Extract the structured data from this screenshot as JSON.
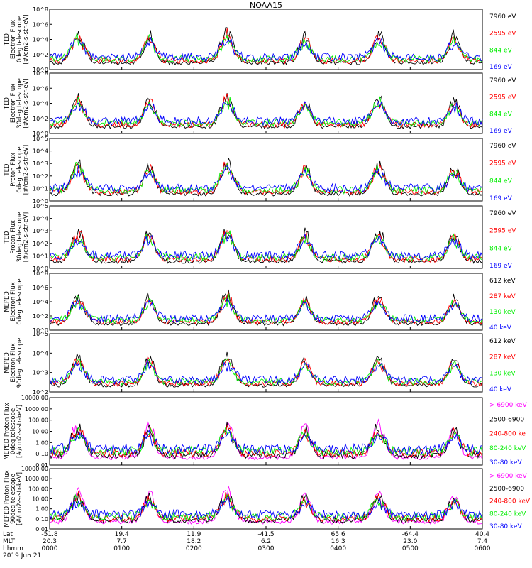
{
  "title": "NOAA15",
  "colors": {
    "blue": "#0000ff",
    "red": "#ff0000",
    "green": "#00ee00",
    "black": "#000000",
    "magenta": "#ff00ff"
  },
  "chart_data": [
    {
      "type": "line",
      "ylabel_lines": [
        "TED",
        "Electron Flux",
        "0deg telescope",
        "[#/cm2-s-str-eV]"
      ],
      "yscale": "log",
      "yticks": [
        "10^0",
        "10^2",
        "10^4",
        "10^6",
        "10^8"
      ],
      "series": [
        {
          "name": "7960 eV",
          "color": "black"
        },
        {
          "name": "2595 eV",
          "color": "red"
        },
        {
          "name": "844 eV",
          "color": "green"
        },
        {
          "name": "169 eV",
          "color": "blue"
        }
      ]
    },
    {
      "type": "line",
      "ylabel_lines": [
        "TED",
        "Electron Flux",
        "30deg telescope",
        "[#/cm2-s-str-eV]"
      ],
      "yscale": "log",
      "yticks": [
        "10^0",
        "10^2",
        "10^4",
        "10^6",
        "10^8"
      ],
      "series": [
        {
          "name": "7960 eV",
          "color": "black"
        },
        {
          "name": "2595 eV",
          "color": "red"
        },
        {
          "name": "844 eV",
          "color": "green"
        },
        {
          "name": "169 eV",
          "color": "blue"
        }
      ]
    },
    {
      "type": "line",
      "ylabel_lines": [
        "TED",
        "Proton Flux",
        "0deg telescope",
        "[#/cm2-s-str-eV]"
      ],
      "yscale": "log",
      "yticks": [
        "10^0",
        "10^1",
        "10^2",
        "10^3",
        "10^4",
        "10^5"
      ],
      "series": [
        {
          "name": "7960 eV",
          "color": "black"
        },
        {
          "name": "2595 eV",
          "color": "red"
        },
        {
          "name": "844 eV",
          "color": "green"
        },
        {
          "name": "169 eV",
          "color": "blue"
        }
      ]
    },
    {
      "type": "line",
      "ylabel_lines": [
        "TED",
        "Proton Flux",
        "30deg telescope",
        "[#/cm2-s-str-eV]"
      ],
      "yscale": "log",
      "yticks": [
        "10^0",
        "10^1",
        "10^2",
        "10^3",
        "10^4",
        "10^5"
      ],
      "series": [
        {
          "name": "7960 eV",
          "color": "black"
        },
        {
          "name": "2595 eV",
          "color": "red"
        },
        {
          "name": "844 eV",
          "color": "green"
        },
        {
          "name": "169 eV",
          "color": "blue"
        }
      ]
    },
    {
      "type": "line",
      "ylabel_lines": [
        "MEPED",
        "Electron Flux",
        "0deg telescope"
      ],
      "yscale": "log",
      "yticks": [
        "10^0",
        "10^2",
        "10^4",
        "10^6",
        "10^8"
      ],
      "series": [
        {
          "name": "612 keV",
          "color": "black"
        },
        {
          "name": "287 keV",
          "color": "red"
        },
        {
          "name": "130 keV",
          "color": "green"
        },
        {
          "name": "40 keV",
          "color": "blue"
        }
      ]
    },
    {
      "type": "line",
      "ylabel_lines": [
        "MEPED",
        "Electron Flux",
        "90deg telescope"
      ],
      "yscale": "log",
      "yticks": [
        "10^2",
        "10^3",
        "10^4",
        "10^5"
      ],
      "series": [
        {
          "name": "612 keV",
          "color": "black"
        },
        {
          "name": "287 keV",
          "color": "red"
        },
        {
          "name": "130 keV",
          "color": "green"
        },
        {
          "name": "40 keV",
          "color": "blue"
        }
      ]
    },
    {
      "type": "line",
      "ylabel_lines": [
        "MEPED Proton Flux",
        "0deg telescope",
        "[#/cm2-s-str-keV]"
      ],
      "yscale": "log",
      "yticks": [
        "10000.00",
        "1000.00",
        "100.00",
        "10.00",
        "1.00",
        "0.10",
        "0.01"
      ],
      "series": [
        {
          "name": "> 6900 keV",
          "color": "magenta"
        },
        {
          "name": "2500-6900",
          "color": "black"
        },
        {
          "name": "240-800 ke",
          "color": "red"
        },
        {
          "name": "80-240 keV",
          "color": "green"
        },
        {
          "name": "30-80 keV",
          "color": "blue"
        }
      ]
    },
    {
      "type": "line",
      "ylabel_lines": [
        "MEPED Proton Flux",
        "90deg telescope",
        "[#/cm2-s-str-keV]"
      ],
      "yscale": "log",
      "yticks": [
        "10000.00",
        "1000.00",
        "100.00",
        "10.00",
        "1.00",
        "0.10",
        "0.01"
      ],
      "series": [
        {
          "name": "> 6900 keV",
          "color": "magenta"
        },
        {
          "name": "2500-6900",
          "color": "black"
        },
        {
          "name": "240-800 keV",
          "color": "red"
        },
        {
          "name": "80-240 keV",
          "color": "green"
        },
        {
          "name": "30-80 keV",
          "color": "blue"
        }
      ]
    }
  ],
  "xaxis": {
    "row_labels": [
      "Lat",
      "MLT",
      "hhmm",
      "2019 Jun 21"
    ],
    "ticks": [
      {
        "lat": "-51.8",
        "mlt": "20.3",
        "hhmm": "0000"
      },
      {
        "lat": "19.4",
        "mlt": "7.7",
        "hhmm": "0100"
      },
      {
        "lat": "11.9",
        "mlt": "18.2",
        "hhmm": "0200"
      },
      {
        "lat": "-41.5",
        "mlt": "6.2",
        "hhmm": "0300"
      },
      {
        "lat": "65.6",
        "mlt": "16.3",
        "hhmm": "0400"
      },
      {
        "lat": "-64.4",
        "mlt": "23.0",
        "hhmm": "0500"
      },
      {
        "lat": "40.4",
        "mlt": "7.4",
        "hhmm": "0600"
      }
    ]
  },
  "passes": [
    {
      "t": 0.065,
      "amp": 0.9,
      "w": 0.02
    },
    {
      "t": 0.23,
      "amp": 0.85,
      "w": 0.018
    },
    {
      "t": 0.41,
      "amp": 0.95,
      "w": 0.02
    },
    {
      "t": 0.59,
      "amp": 0.8,
      "w": 0.018
    },
    {
      "t": 0.76,
      "amp": 0.85,
      "w": 0.02
    },
    {
      "t": 0.935,
      "amp": 0.8,
      "w": 0.018
    }
  ]
}
